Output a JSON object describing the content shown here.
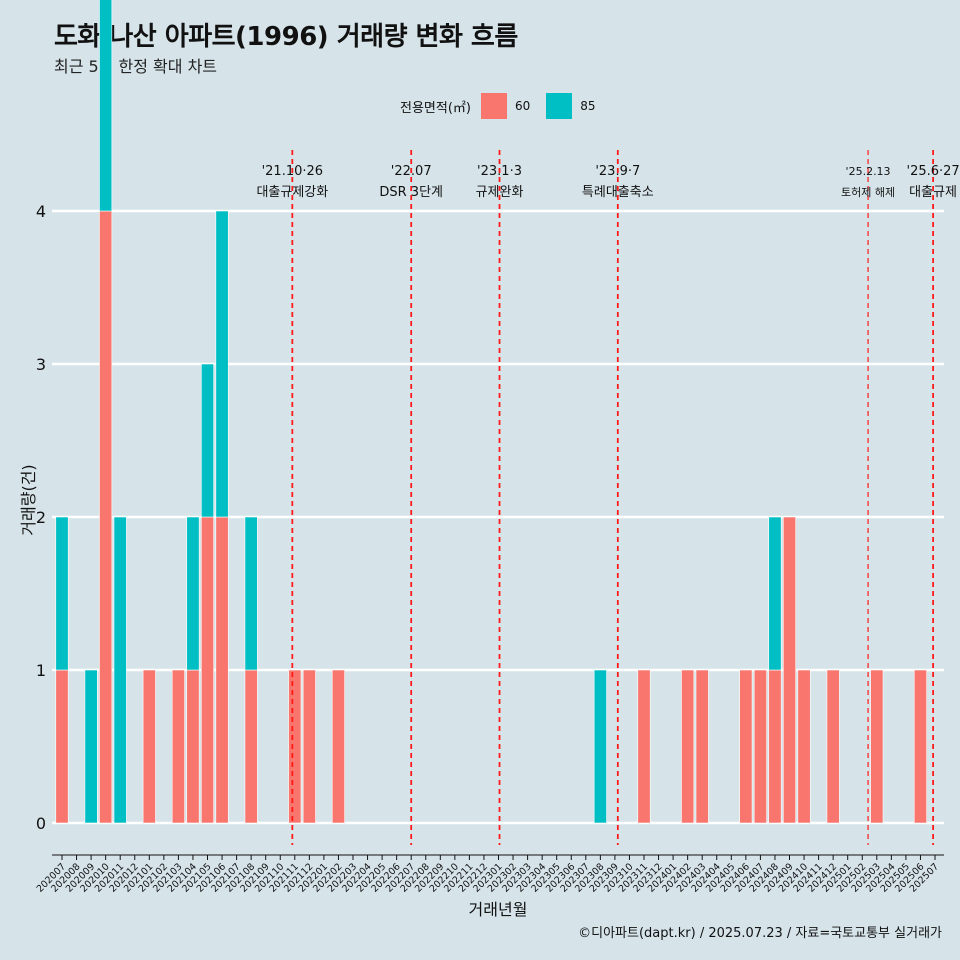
{
  "chart_data": {
    "type": "bar",
    "title": "도화 나산 아파트(1996) 거래량 변화 흐름",
    "subtitle": "최근 5년 한정 확대 차트",
    "xlabel": "거래년월",
    "ylabel": "거래량(건)",
    "ylim": [
      0,
      4
    ],
    "yticks": [
      0,
      1,
      2,
      3,
      4
    ],
    "grid": true,
    "legend_title": "전용면적(㎡)",
    "legend_position": "top",
    "caption": "©디아파트(dapt.kr) / 2025.07.23 / 자료=국토교통부 실거래가",
    "categories": [
      "202007",
      "202008",
      "202009",
      "202010",
      "202011",
      "202012",
      "202101",
      "202102",
      "202103",
      "202104",
      "202105",
      "202106",
      "202107",
      "202108",
      "202109",
      "202110",
      "202111",
      "202112",
      "202201",
      "202202",
      "202203",
      "202204",
      "202205",
      "202206",
      "202207",
      "202208",
      "202209",
      "202210",
      "202211",
      "202212",
      "202301",
      "202302",
      "202303",
      "202304",
      "202305",
      "202306",
      "202307",
      "202308",
      "202309",
      "202310",
      "202311",
      "202312",
      "202401",
      "202402",
      "202403",
      "202404",
      "202405",
      "202406",
      "202407",
      "202408",
      "202409",
      "202410",
      "202411",
      "202412",
      "202501",
      "202502",
      "202503",
      "202504",
      "202505",
      "202506",
      "202507"
    ],
    "series": [
      {
        "name": "60",
        "color": "#F8766D",
        "values": [
          1,
          0,
          0,
          4,
          0,
          0,
          1,
          0,
          1,
          1,
          2,
          2,
          0,
          1,
          0,
          0,
          1,
          1,
          0,
          1,
          0,
          0,
          0,
          0,
          0,
          0,
          0,
          0,
          0,
          0,
          0,
          0,
          0,
          0,
          0,
          0,
          0,
          0,
          0,
          0,
          1,
          0,
          0,
          1,
          1,
          0,
          0,
          1,
          1,
          1,
          2,
          1,
          0,
          1,
          0,
          0,
          1,
          0,
          0,
          1,
          0
        ]
      },
      {
        "name": "85",
        "color": "#00BFC4",
        "values": [
          1,
          0,
          1,
          2,
          2,
          0,
          0,
          0,
          0,
          1,
          1,
          2,
          0,
          1,
          0,
          0,
          0,
          0,
          0,
          0,
          0,
          0,
          0,
          0,
          0,
          0,
          0,
          0,
          0,
          0,
          0,
          0,
          0,
          0,
          0,
          0,
          0,
          1,
          0,
          0,
          0,
          0,
          0,
          0,
          0,
          0,
          0,
          0,
          0,
          1,
          0,
          0,
          0,
          0,
          0,
          0,
          0,
          0,
          0,
          0,
          0
        ]
      }
    ],
    "annotations": [
      {
        "date": "'21.10·26",
        "label": "대출규제강화",
        "category": "202110",
        "offset": 0.83,
        "style": "dashed"
      },
      {
        "date": "'22.07",
        "label": "DSR 3단계",
        "category": "202207",
        "offset": 0.0,
        "style": "dashed"
      },
      {
        "date": "'23.1·3",
        "label": "규제완화",
        "category": "202301",
        "offset": 0.07,
        "style": "dashed"
      },
      {
        "date": "'23.9·7",
        "label": "특례대출축소",
        "category": "202309",
        "offset": 0.2,
        "style": "dashed"
      },
      {
        "date": "'25.2.13",
        "label": "토허제 해제",
        "category": "202502",
        "offset": 0.4,
        "style": "dashed-thin",
        "small": true
      },
      {
        "date": "'25.6·27",
        "label": "대출규제",
        "category": "202506",
        "offset": 0.87,
        "style": "dashed"
      }
    ]
  }
}
